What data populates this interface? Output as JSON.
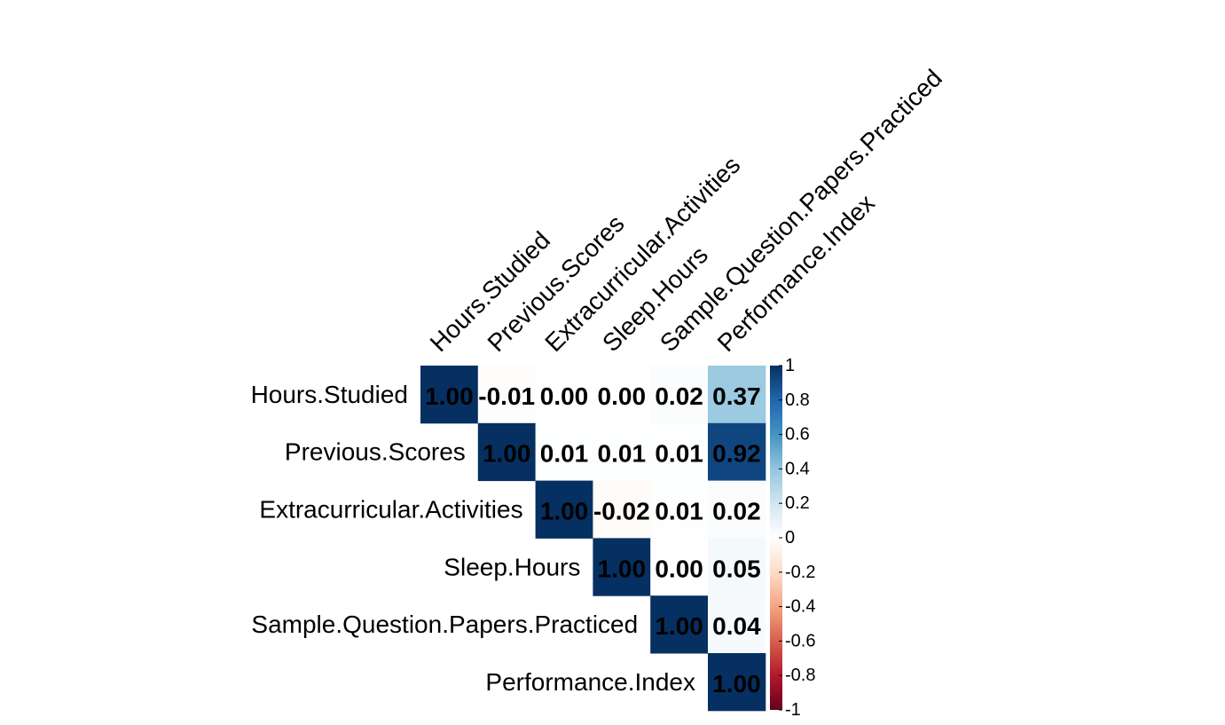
{
  "chart_data": {
    "type": "heatmap",
    "subtype": "upper-triangle correlation matrix",
    "variables": [
      "Hours.Studied",
      "Previous.Scores",
      "Extracurricular.Activities",
      "Sleep.Hours",
      "Sample.Question.Papers.Practiced",
      "Performance.Index"
    ],
    "cells": [
      {
        "row": 0,
        "col": 0,
        "value": 1.0,
        "label": "1.00"
      },
      {
        "row": 0,
        "col": 1,
        "value": -0.01,
        "label": "-0.01"
      },
      {
        "row": 0,
        "col": 2,
        "value": 0.0,
        "label": "0.00"
      },
      {
        "row": 0,
        "col": 3,
        "value": 0.0,
        "label": "0.00"
      },
      {
        "row": 0,
        "col": 4,
        "value": 0.02,
        "label": "0.02"
      },
      {
        "row": 0,
        "col": 5,
        "value": 0.37,
        "label": "0.37"
      },
      {
        "row": 1,
        "col": 1,
        "value": 1.0,
        "label": "1.00"
      },
      {
        "row": 1,
        "col": 2,
        "value": 0.01,
        "label": "0.01"
      },
      {
        "row": 1,
        "col": 3,
        "value": 0.01,
        "label": "0.01"
      },
      {
        "row": 1,
        "col": 4,
        "value": 0.01,
        "label": "0.01"
      },
      {
        "row": 1,
        "col": 5,
        "value": 0.92,
        "label": "0.92"
      },
      {
        "row": 2,
        "col": 2,
        "value": 1.0,
        "label": "1.00"
      },
      {
        "row": 2,
        "col": 3,
        "value": -0.02,
        "label": "-0.02"
      },
      {
        "row": 2,
        "col": 4,
        "value": 0.01,
        "label": "0.01"
      },
      {
        "row": 2,
        "col": 5,
        "value": 0.02,
        "label": "0.02"
      },
      {
        "row": 3,
        "col": 3,
        "value": 1.0,
        "label": "1.00"
      },
      {
        "row": 3,
        "col": 4,
        "value": 0.0,
        "label": "0.00"
      },
      {
        "row": 3,
        "col": 5,
        "value": 0.05,
        "label": "0.05"
      },
      {
        "row": 4,
        "col": 4,
        "value": 1.0,
        "label": "1.00"
      },
      {
        "row": 4,
        "col": 5,
        "value": 0.04,
        "label": "0.04"
      },
      {
        "row": 5,
        "col": 5,
        "value": 1.0,
        "label": "1.00"
      }
    ],
    "color_scale": {
      "min": -1,
      "max": 1,
      "stops": [
        {
          "value": -1.0,
          "color": "#67001F"
        },
        {
          "value": -0.8,
          "color": "#B2182B"
        },
        {
          "value": -0.6,
          "color": "#D6604D"
        },
        {
          "value": -0.4,
          "color": "#F4A582"
        },
        {
          "value": -0.2,
          "color": "#FDDBC7"
        },
        {
          "value": 0.0,
          "color": "#FFFFFF"
        },
        {
          "value": 0.2,
          "color": "#D1E5F0"
        },
        {
          "value": 0.4,
          "color": "#92C5DE"
        },
        {
          "value": 0.6,
          "color": "#4393C3"
        },
        {
          "value": 0.8,
          "color": "#2166AC"
        },
        {
          "value": 1.0,
          "color": "#053061"
        }
      ],
      "ticks": [
        "1",
        "0.8",
        "0.6",
        "0.4",
        "0.2",
        "0",
        "-0.2",
        "-0.4",
        "-0.6",
        "-0.8",
        "-1"
      ]
    },
    "legend_placement": "right",
    "title": "",
    "xlabel": "",
    "ylabel": ""
  }
}
